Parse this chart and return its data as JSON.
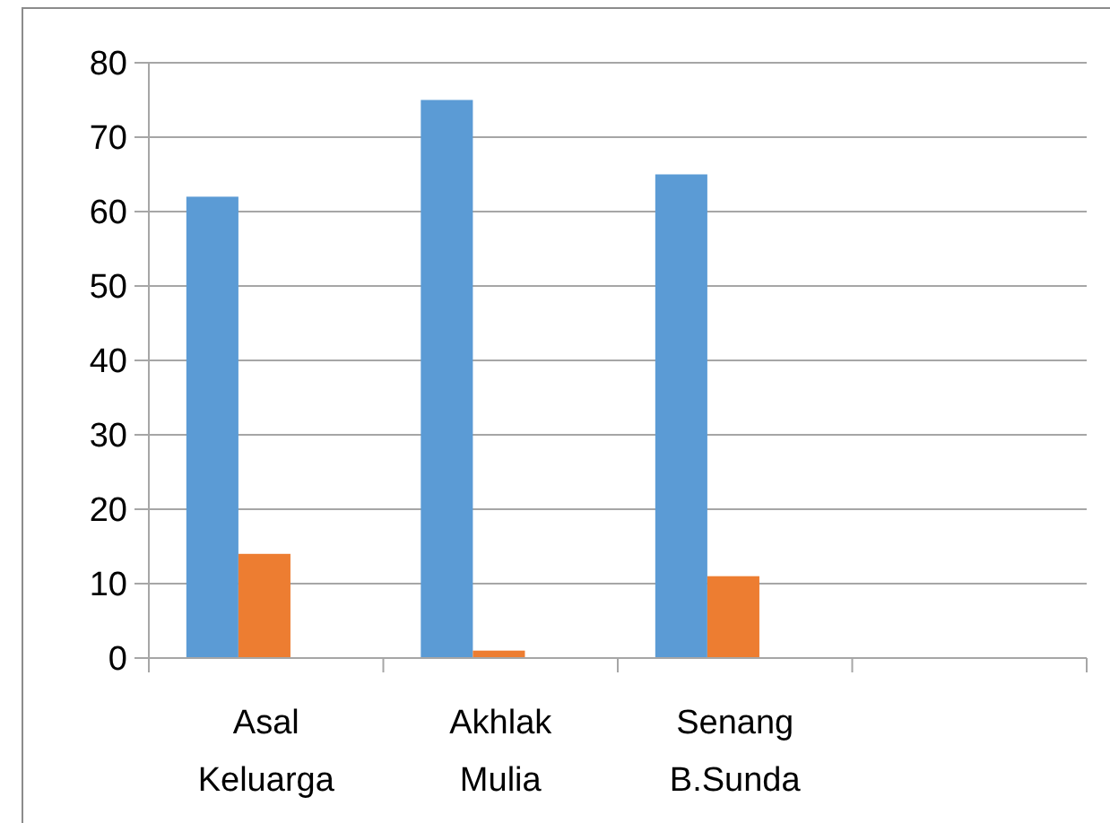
{
  "chart_data": {
    "type": "bar",
    "categories": [
      "Asal Keluarga",
      "Akhlak Mulia",
      "Senang B.Sunda",
      null
    ],
    "series": [
      {
        "color": "#5b9bd5",
        "values": [
          62,
          75,
          65,
          null
        ]
      },
      {
        "color": "#ed7d31",
        "values": [
          14,
          1,
          11,
          null
        ]
      }
    ],
    "ylim": [
      0,
      80
    ],
    "yticks": [
      0,
      10,
      20,
      30,
      40,
      50,
      60,
      70,
      80
    ],
    "grid": "y"
  }
}
